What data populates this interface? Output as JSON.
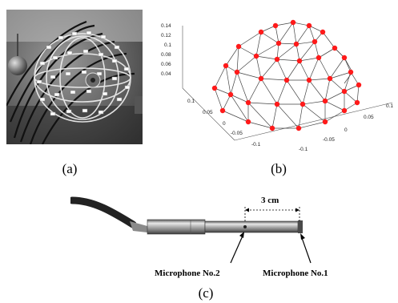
{
  "figure": {
    "panels": [
      {
        "id": "a",
        "caption": "(a)"
      },
      {
        "id": "b",
        "caption": "(b)"
      },
      {
        "id": "c",
        "caption": "(c)"
      }
    ]
  },
  "panel_b": {
    "z_ticks": [
      "0.14",
      "0.12",
      "0.1",
      "0.08",
      "0.06",
      "0.04"
    ],
    "left_axis_ticks": [
      "0.1",
      "0.05",
      "0",
      "-0.05",
      "-0.1"
    ],
    "right_axis_ticks": [
      "-0.1",
      "-0.05",
      "0",
      "0.05",
      "0.1"
    ],
    "marker_color": "#ff1a1a"
  },
  "panel_c": {
    "distance_label": "3 cm",
    "mic2_label": "Microphone No.2",
    "mic1_label": "Microphone No.1"
  }
}
